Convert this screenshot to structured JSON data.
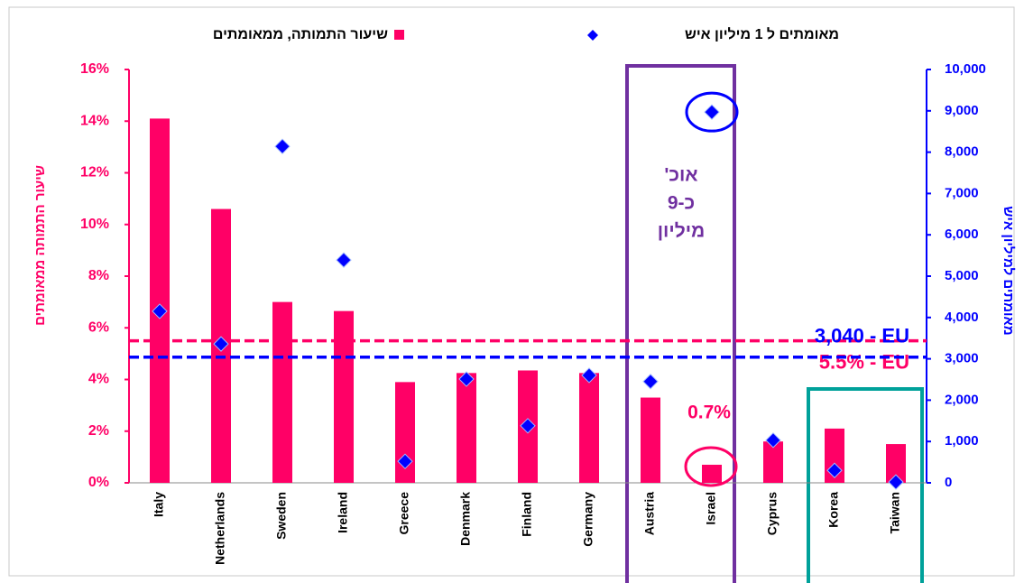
{
  "chart_data": {
    "type": "bar",
    "categories": [
      "Italy",
      "Netherlands",
      "Sweden",
      "Ireland",
      "Greece",
      "Denmark",
      "Finland",
      "Germany",
      "Austria",
      "Israel",
      "Cyprus",
      "Korea",
      "Taiwan"
    ],
    "series": [
      {
        "name": "שיעור התמותה, ממאומתים",
        "type": "bar",
        "color": "#ff0066",
        "values": [
          14.1,
          10.6,
          7.0,
          6.65,
          3.9,
          4.25,
          4.35,
          4.25,
          3.3,
          0.7,
          1.6,
          2.1,
          1.5
        ]
      },
      {
        "name": "מאומתים ל 1 מיליון איש",
        "type": "scatter",
        "axis": "y2",
        "color": "#0000ff",
        "values": [
          4150,
          3360,
          8140,
          5390,
          520,
          2510,
          1380,
          2600,
          2450,
          8970,
          1030,
          300,
          20
        ]
      }
    ],
    "ylabel": "שיעור התמותה ממאומתים",
    "y2label": "מאומתים למיליון איש",
    "ylim": [
      0,
      16
    ],
    "yticks": [
      {
        "value": 0,
        "label": "0%"
      },
      {
        "value": 2,
        "label": "2%"
      },
      {
        "value": 4,
        "label": "4%"
      },
      {
        "value": 6,
        "label": "6%"
      },
      {
        "value": 8,
        "label": "8%"
      },
      {
        "value": 10,
        "label": "10%"
      },
      {
        "value": 12,
        "label": "12%"
      },
      {
        "value": 14,
        "label": "14%"
      },
      {
        "value": 16,
        "label": "16%"
      }
    ],
    "y2lim": [
      0,
      10000
    ],
    "y2ticks": [
      0,
      {
        "value": 1000,
        "label": "1,000"
      },
      {
        "value": 2000,
        "label": "2,000"
      },
      {
        "value": 3000,
        "label": "3,000"
      },
      {
        "value": 4000,
        "label": "4,000"
      },
      {
        "value": 5000,
        "label": "5,000"
      },
      {
        "value": 6000,
        "label": "6,000"
      },
      {
        "value": 7000,
        "label": "7,000"
      },
      {
        "value": 8000,
        "label": "8,000"
      },
      {
        "value": 9000,
        "label": "9,000"
      },
      {
        "value": 10000,
        "label": "10,000"
      }
    ],
    "reference_lines": [
      {
        "value": 5.5,
        "label": "5.5% - EU",
        "color": "#ff0066"
      },
      {
        "value": 3040,
        "label": "3,040  - EU",
        "axis": "y2",
        "color": "#0000ff"
      }
    ],
    "annotations": [
      {
        "text": "0.7%"
      },
      {
        "lines": [
          "אוכ'",
          "כ-9",
          "מיליון"
        ]
      }
    ]
  }
}
